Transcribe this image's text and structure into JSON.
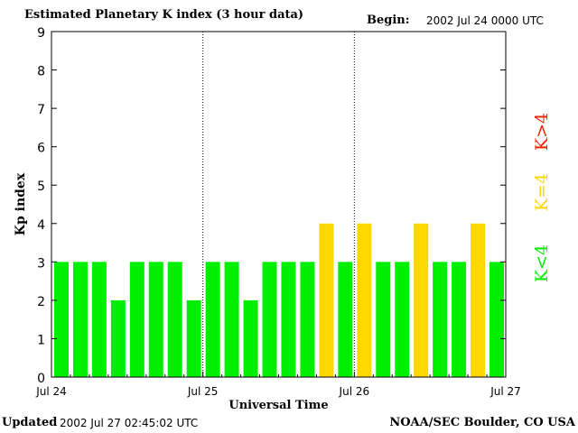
{
  "header": {
    "title": "Estimated Planetary K index (3 hour data)",
    "begin_label": "Begin:",
    "begin_value": "2002 Jul 24 0000 UTC"
  },
  "footer": {
    "updated_label": "Updated",
    "updated_value": "2002 Jul 27 02:45:02 UTC",
    "credit": "NOAA/SEC Boulder, CO USA"
  },
  "colors": {
    "low": "#00ee00",
    "mid": "#ffd700",
    "high": "#ee2200",
    "axis": "#000000"
  },
  "legend": [
    {
      "label": "K<4",
      "color": "#00ee00"
    },
    {
      "label": "K=4",
      "color": "#ffd700"
    },
    {
      "label": "K>4",
      "color": "#ee2200"
    }
  ],
  "chart_data": {
    "type": "bar",
    "title": "Estimated Planetary K index (3 hour data)",
    "xlabel": "Universal Time",
    "ylabel": "Kp index",
    "ylim": [
      0,
      9
    ],
    "yticks": [
      0,
      1,
      2,
      3,
      4,
      5,
      6,
      7,
      8,
      9
    ],
    "xticks": [
      "Jul 24",
      "Jul 25",
      "Jul 26",
      "Jul 27"
    ],
    "bars_per_day": 8,
    "day_dividers": "dotted",
    "values": [
      3,
      3,
      3,
      2,
      3,
      3,
      3,
      2,
      3,
      3,
      2,
      3,
      3,
      3,
      4,
      3,
      4,
      3,
      3,
      4,
      3,
      3,
      4,
      3
    ]
  }
}
